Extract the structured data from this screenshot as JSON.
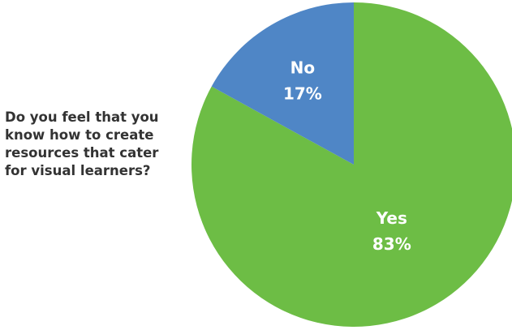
{
  "question": {
    "lines": [
      "Do you feel that you",
      "know how to create",
      "resources that cater",
      "for visual learners?"
    ]
  },
  "chart_data": {
    "type": "pie",
    "categories": [
      "Yes",
      "No"
    ],
    "values": [
      83,
      17
    ],
    "value_labels": [
      "83%",
      "17%"
    ],
    "colors": [
      "#6dbd45",
      "#4f86c6"
    ],
    "start_angle_deg": 0,
    "legend": "none"
  }
}
